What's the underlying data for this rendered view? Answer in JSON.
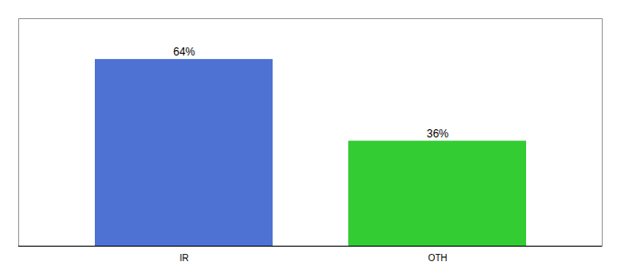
{
  "chart_data": {
    "type": "bar",
    "categories": [
      "IR",
      "OTH"
    ],
    "values": [
      64,
      36
    ],
    "value_labels": [
      "64%",
      "36%"
    ],
    "data_labels": true,
    "colors": [
      "#4d72d4",
      "#33cc33"
    ],
    "ylim": [
      0,
      78
    ],
    "tick_labels": "x",
    "grid": false
  }
}
